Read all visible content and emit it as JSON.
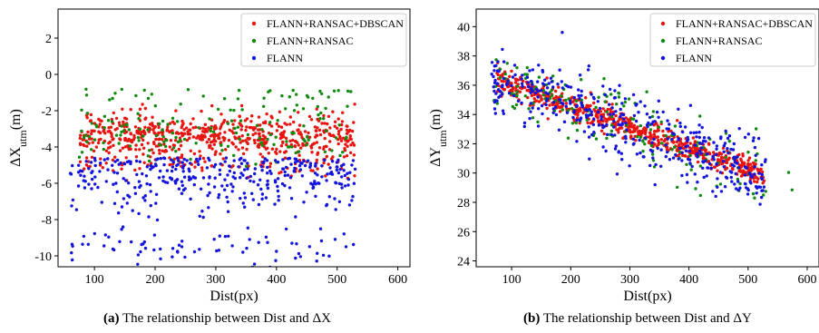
{
  "chart_data": [
    {
      "type": "scatter",
      "caption_tag": "(a)",
      "caption_text": "The relationship between Dist and ΔX",
      "xlabel": "Dist(px)",
      "ylabel_main": "ΔX",
      "ylabel_sub": "utm",
      "ylabel_unit": "(m)",
      "xlim": [
        40,
        620
      ],
      "ylim": [
        -10.6,
        3.6
      ],
      "xticks": [
        100,
        200,
        300,
        400,
        500,
        600
      ],
      "yticks": [
        -10,
        -8,
        -6,
        -4,
        -2,
        0,
        2
      ],
      "grid": false,
      "legend_position": "top-right",
      "series": [
        {
          "name": "FLANN+RANSAC+DBSCAN",
          "color": "#e8140f",
          "y_mean": -3.4,
          "y_spread": 0.9,
          "y_outlier": -5.1,
          "x_range": [
            75,
            530
          ],
          "count": 650
        },
        {
          "name": "FLANN+RANSAC",
          "color": "#128a12",
          "y_mean": -3.4,
          "y_spread": 1.1,
          "y_outlier": -0.8,
          "x_range": [
            75,
            580
          ],
          "count": 170
        },
        {
          "name": "FLANN",
          "color": "#1414dc",
          "y_mean": -5.6,
          "y_spread": 1.3,
          "y_outlier": -9.6,
          "x_range": [
            60,
            530
          ],
          "count": 420
        }
      ]
    },
    {
      "type": "scatter",
      "caption_tag": "(b)",
      "caption_text": "The relationship between Dist and ΔY",
      "xlabel": "Dist(px)",
      "ylabel_main": "ΔY",
      "ylabel_sub": "utm",
      "ylabel_unit": "(m)",
      "xlim": [
        40,
        620
      ],
      "ylim": [
        23.6,
        41.2
      ],
      "xticks": [
        100,
        200,
        300,
        400,
        500,
        600
      ],
      "yticks": [
        24,
        26,
        28,
        30,
        32,
        34,
        36,
        38,
        40
      ],
      "grid": false,
      "legend_position": "top-right",
      "trend": {
        "x0": 80,
        "y0": 36.3,
        "x1": 520,
        "y1": 30.0
      },
      "series": [
        {
          "name": "FLANN+RANSAC+DBSCAN",
          "color": "#e8140f",
          "y_spread": 0.6,
          "x_range": [
            75,
            530
          ],
          "count": 650
        },
        {
          "name": "FLANN+RANSAC",
          "color": "#128a12",
          "y_spread": 1.6,
          "x_range": [
            65,
            580
          ],
          "count": 170
        },
        {
          "name": "FLANN",
          "color": "#1414dc",
          "y_spread": 1.8,
          "x_range": [
            65,
            530
          ],
          "count": 420
        }
      ]
    }
  ]
}
